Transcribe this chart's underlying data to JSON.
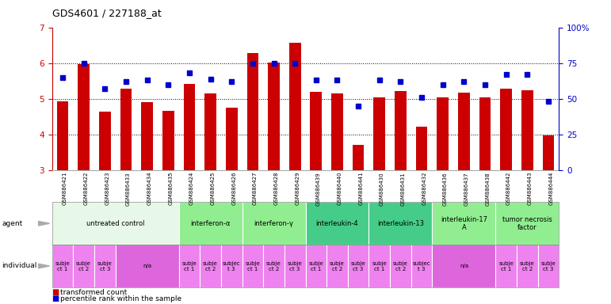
{
  "title": "GDS4601 / 227188_at",
  "samples": [
    "GSM886421",
    "GSM886422",
    "GSM886423",
    "GSM886433",
    "GSM886434",
    "GSM886435",
    "GSM886424",
    "GSM886425",
    "GSM886426",
    "GSM886427",
    "GSM886428",
    "GSM886429",
    "GSM886439",
    "GSM886440",
    "GSM886441",
    "GSM886430",
    "GSM886431",
    "GSM886432",
    "GSM886436",
    "GSM886437",
    "GSM886438",
    "GSM886442",
    "GSM886443",
    "GSM886444"
  ],
  "bar_values": [
    4.93,
    5.97,
    4.63,
    5.28,
    4.9,
    4.67,
    5.42,
    5.15,
    4.76,
    6.27,
    6.02,
    6.58,
    5.2,
    5.15,
    3.72,
    5.03,
    5.22,
    4.22,
    5.05,
    5.18,
    5.03,
    5.28,
    5.25,
    3.97
  ],
  "dot_values": [
    65,
    75,
    57,
    62,
    63,
    60,
    68,
    64,
    62,
    75,
    75,
    75,
    63,
    63,
    45,
    63,
    62,
    51,
    60,
    62,
    60,
    67,
    67,
    48
  ],
  "ylim_left": [
    3,
    7
  ],
  "ylim_right": [
    0,
    100
  ],
  "yticks_left": [
    3,
    4,
    5,
    6,
    7
  ],
  "yticks_right": [
    0,
    25,
    50,
    75,
    100
  ],
  "bar_color": "#cc0000",
  "dot_color": "#0000cc",
  "groups": [
    {
      "label": "untreated control",
      "start": 0,
      "end": 5,
      "color": "#e8f8e8"
    },
    {
      "label": "interferon-α",
      "start": 6,
      "end": 8,
      "color": "#90ee90"
    },
    {
      "label": "interferon-γ",
      "start": 9,
      "end": 11,
      "color": "#90ee90"
    },
    {
      "label": "interleukin-4",
      "start": 12,
      "end": 14,
      "color": "#44cc88"
    },
    {
      "label": "interleukin-13",
      "start": 15,
      "end": 17,
      "color": "#44cc88"
    },
    {
      "label": "interleukin-17\nA",
      "start": 18,
      "end": 20,
      "color": "#90ee90"
    },
    {
      "label": "tumor necrosis\nfactor",
      "start": 21,
      "end": 23,
      "color": "#90ee90"
    }
  ],
  "individual_groups": [
    {
      "label": "subje\nct 1",
      "start": 0,
      "end": 0,
      "color": "#ee82ee"
    },
    {
      "label": "subje\nct 2",
      "start": 1,
      "end": 1,
      "color": "#ee82ee"
    },
    {
      "label": "subje\nct 3",
      "start": 2,
      "end": 2,
      "color": "#ee82ee"
    },
    {
      "label": "n/a",
      "start": 3,
      "end": 5,
      "color": "#dd66dd"
    },
    {
      "label": "subje\nct 1",
      "start": 6,
      "end": 6,
      "color": "#ee82ee"
    },
    {
      "label": "subje\nct 2",
      "start": 7,
      "end": 7,
      "color": "#ee82ee"
    },
    {
      "label": "subjec\nt 3",
      "start": 8,
      "end": 8,
      "color": "#ee82ee"
    },
    {
      "label": "subje\nct 1",
      "start": 9,
      "end": 9,
      "color": "#ee82ee"
    },
    {
      "label": "subje\nct 2",
      "start": 10,
      "end": 10,
      "color": "#ee82ee"
    },
    {
      "label": "subje\nct 3",
      "start": 11,
      "end": 11,
      "color": "#ee82ee"
    },
    {
      "label": "subje\nct 1",
      "start": 12,
      "end": 12,
      "color": "#ee82ee"
    },
    {
      "label": "subje\nct 2",
      "start": 13,
      "end": 13,
      "color": "#ee82ee"
    },
    {
      "label": "subje\nct 3",
      "start": 14,
      "end": 14,
      "color": "#ee82ee"
    },
    {
      "label": "subje\nct 1",
      "start": 15,
      "end": 15,
      "color": "#ee82ee"
    },
    {
      "label": "subje\nct 2",
      "start": 16,
      "end": 16,
      "color": "#ee82ee"
    },
    {
      "label": "subjec\nt 3",
      "start": 17,
      "end": 17,
      "color": "#ee82ee"
    },
    {
      "label": "n/a",
      "start": 18,
      "end": 20,
      "color": "#dd66dd"
    },
    {
      "label": "subje\nct 1",
      "start": 21,
      "end": 21,
      "color": "#ee82ee"
    },
    {
      "label": "subje\nct 2",
      "start": 22,
      "end": 22,
      "color": "#ee82ee"
    },
    {
      "label": "subje\nct 3",
      "start": 23,
      "end": 23,
      "color": "#ee82ee"
    }
  ],
  "bg_color": "#ffffff",
  "sample_label_color": "#cccccc",
  "arrow_color": "#999999"
}
